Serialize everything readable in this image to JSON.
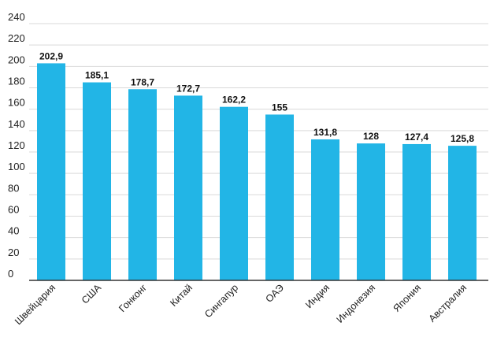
{
  "chart_data": {
    "type": "bar",
    "categories": [
      "Швейцария",
      "США",
      "Гонконг",
      "Китай",
      "Сингапур",
      "ОАЭ",
      "Индия",
      "Индонезия",
      "Япония",
      "Австралия"
    ],
    "values": [
      202.9,
      185.1,
      178.7,
      172.7,
      162.2,
      155,
      131.8,
      128,
      127.4,
      125.8
    ],
    "value_labels": [
      "202,9",
      "185,1",
      "178,7",
      "172,7",
      "162,2",
      "155",
      "131,8",
      "128",
      "127,4",
      "125,8"
    ],
    "ylim": [
      0,
      240
    ],
    "yticks": [
      0,
      20,
      40,
      60,
      80,
      100,
      120,
      140,
      160,
      180,
      200,
      220,
      240
    ],
    "grid": true,
    "bar_color": "#22b5e6",
    "title": "",
    "xlabel": "",
    "ylabel": ""
  }
}
